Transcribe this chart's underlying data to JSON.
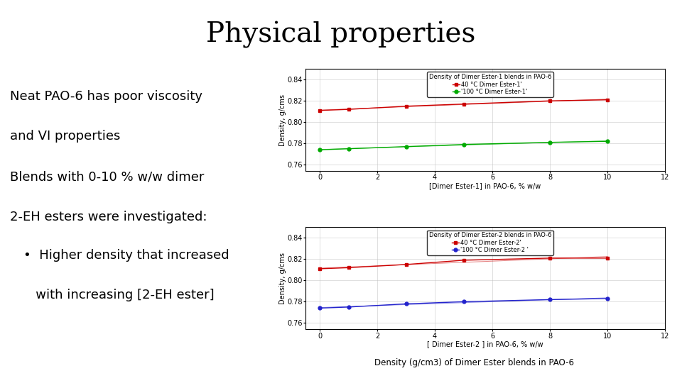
{
  "title": "Physical properties",
  "left_text_lines": [
    "Neat PAO-6 has poor viscosity",
    "and VI properties",
    "Blends with 0-10 % w/w dimer",
    "2-EH esters were investigated:"
  ],
  "bullet_lines": [
    "Higher density that increased",
    "with increasing [2-EH ester]"
  ],
  "bottom_caption": "Density (g/cm3) of Dimer Ester blends in PAO-6",
  "plot1": {
    "title": "Density of Dimer Ester-1 blends in PAO-6",
    "xlabel": "[Dimer Ester-1] in PAO-6, % w/w",
    "ylabel": "Density, g/cms",
    "xlim": [
      -0.5,
      12
    ],
    "ylim": [
      0.754,
      0.85
    ],
    "yticks": [
      0.76,
      0.78,
      0.8,
      0.82,
      0.84
    ],
    "xticks": [
      0,
      2,
      4,
      6,
      8,
      10,
      12
    ],
    "series": [
      {
        "label": "40 °C Dimer Ester-1'",
        "x": [
          0,
          1,
          3,
          5,
          8,
          10
        ],
        "y": [
          0.811,
          0.812,
          0.815,
          0.817,
          0.82,
          0.821
        ],
        "color": "#cc0000",
        "marker": "s"
      },
      {
        "label": "'100 °C Dimer Ester-1'",
        "x": [
          0,
          1,
          3,
          5,
          8,
          10
        ],
        "y": [
          0.774,
          0.775,
          0.777,
          0.779,
          0.781,
          0.782
        ],
        "color": "#00aa00",
        "marker": "o"
      }
    ]
  },
  "plot2": {
    "title": "Density of Dimer Ester-2 blends in PAO-6",
    "xlabel": "[ Dimer Ester-2 ] in PAO-6, % w/w",
    "ylabel": "Density, g/cms",
    "xlim": [
      -0.5,
      12
    ],
    "ylim": [
      0.754,
      0.85
    ],
    "yticks": [
      0.76,
      0.78,
      0.8,
      0.82,
      0.84
    ],
    "xticks": [
      0,
      2,
      4,
      6,
      8,
      10,
      12
    ],
    "series": [
      {
        "label": "40 °C Dimer Ester-2'",
        "x": [
          0,
          1,
          3,
          5,
          8,
          10
        ],
        "y": [
          0.811,
          0.812,
          0.815,
          0.819,
          0.821,
          0.821
        ],
        "color": "#cc0000",
        "marker": "s"
      },
      {
        "label": "'100 °C Dimer Ester-2 '",
        "x": [
          0,
          1,
          3,
          5,
          8,
          10
        ],
        "y": [
          0.774,
          0.775,
          0.778,
          0.78,
          0.782,
          0.783
        ],
        "color": "#2222cc",
        "marker": "o"
      }
    ]
  },
  "background_color": "#ffffff",
  "title_fontsize": 28,
  "axis_fontsize": 7,
  "legend_fontsize": 6,
  "label_fontsize": 7,
  "text_fontsize": 13
}
